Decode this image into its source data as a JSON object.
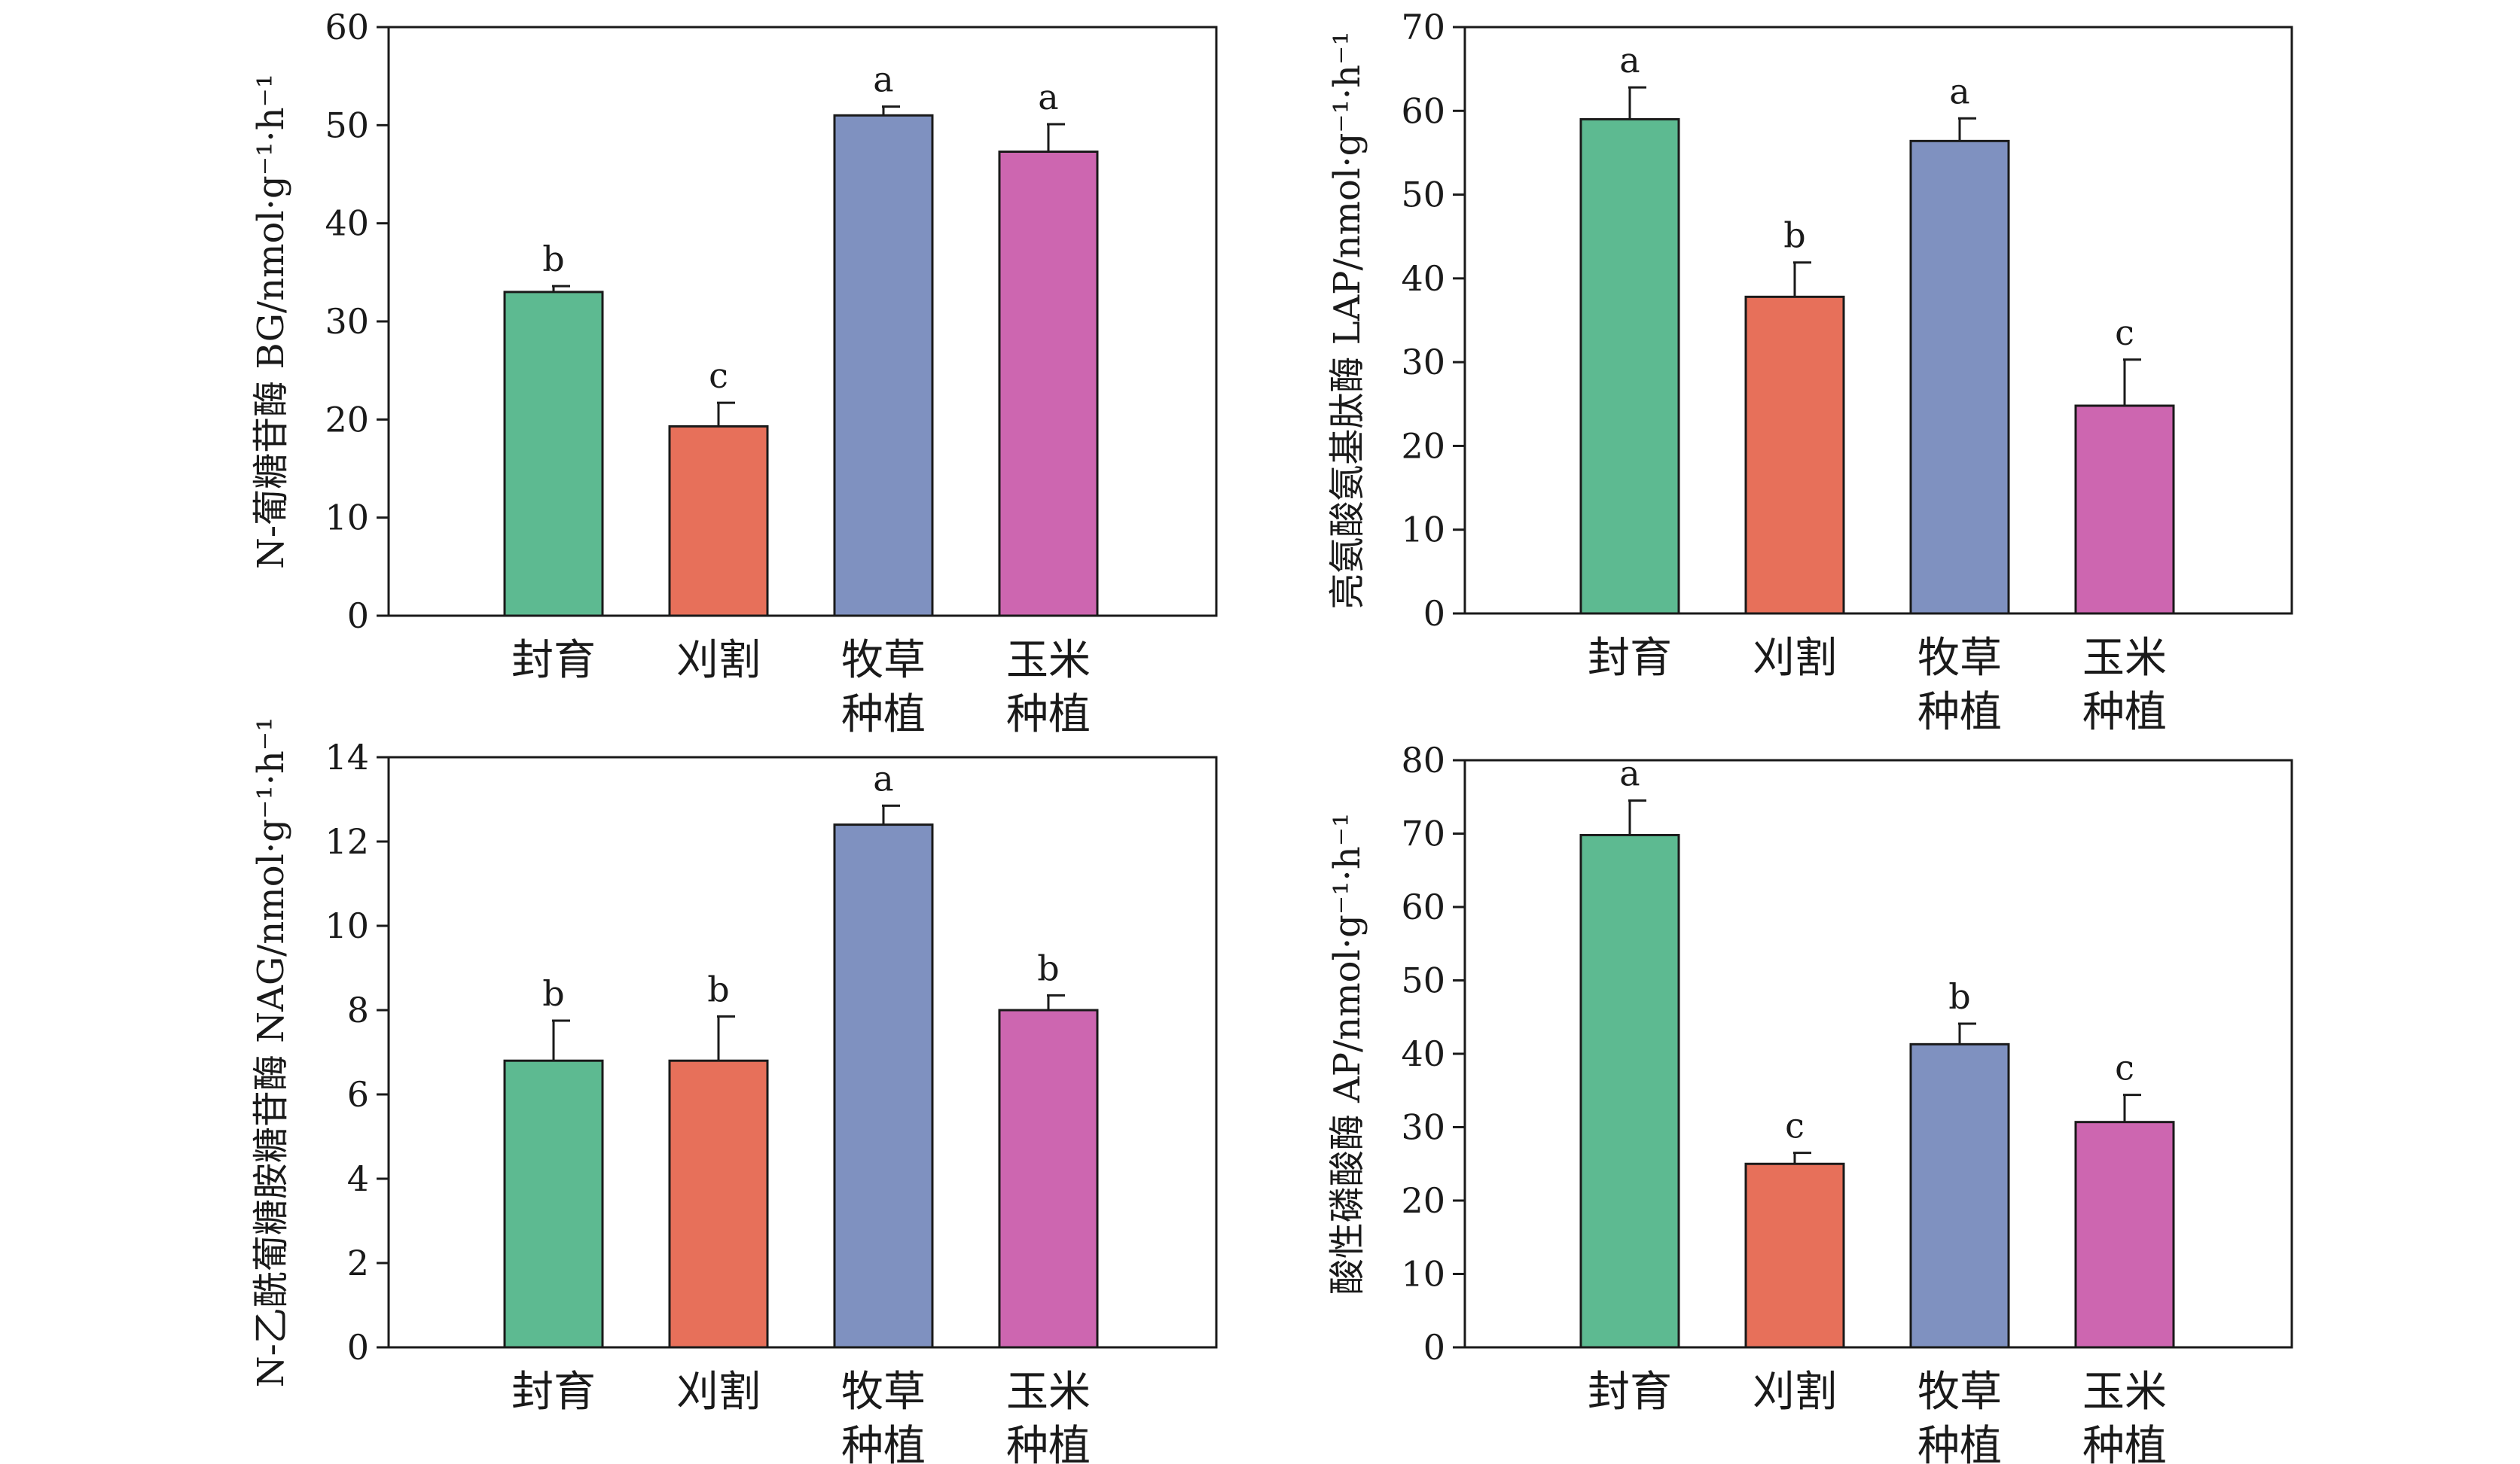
{
  "chart_data": [
    {
      "type": "bar",
      "ylabel": "N-葡糖苷酶 BG/nmol·g⁻¹·h⁻¹",
      "categories": [
        [
          "封育"
        ],
        [
          "刈割"
        ],
        [
          "牧草",
          "种植"
        ],
        [
          "玉米",
          "种植"
        ]
      ],
      "values": [
        33.0,
        19.3,
        51.0,
        47.3
      ],
      "errors": [
        0.6,
        2.4,
        0.9,
        2.8
      ],
      "letters": [
        "b",
        "c",
        "a",
        "a"
      ],
      "ylim": [
        0,
        60
      ],
      "yticks": [
        0,
        10,
        20,
        30,
        40,
        50,
        60
      ],
      "colors": [
        "#5dba91",
        "#e7705a",
        "#7f91c0",
        "#cd66b0"
      ]
    },
    {
      "type": "bar",
      "ylabel": "亮氨酸氨基肽酶 LAP/nmol·g⁻¹·h⁻¹",
      "categories": [
        [
          "封育"
        ],
        [
          "刈割"
        ],
        [
          "牧草",
          "种植"
        ],
        [
          "玉米",
          "种植"
        ]
      ],
      "values": [
        59.0,
        37.8,
        56.4,
        24.8
      ],
      "errors": [
        3.8,
        4.1,
        2.7,
        5.5
      ],
      "letters": [
        "a",
        "b",
        "a",
        "c"
      ],
      "ylim": [
        0,
        70
      ],
      "yticks": [
        0,
        10,
        20,
        30,
        40,
        50,
        60,
        70
      ],
      "colors": [
        "#5dba91",
        "#e7705a",
        "#7f91c0",
        "#cd66b0"
      ]
    },
    {
      "type": "bar",
      "ylabel": "N-乙酰葡糖胺糖苷酶 NAG/nmol·g⁻¹·h⁻¹",
      "categories": [
        [
          "封育"
        ],
        [
          "刈割"
        ],
        [
          "牧草",
          "种植"
        ],
        [
          "玉米",
          "种植"
        ]
      ],
      "values": [
        6.8,
        6.8,
        12.4,
        8.0
      ],
      "errors": [
        0.95,
        1.05,
        0.45,
        0.35
      ],
      "letters": [
        "b",
        "b",
        "a",
        "b"
      ],
      "ylim": [
        0,
        14
      ],
      "yticks": [
        0,
        2,
        4,
        6,
        8,
        10,
        12,
        14
      ],
      "colors": [
        "#5dba91",
        "#e7705a",
        "#7f91c0",
        "#cd66b0"
      ]
    },
    {
      "type": "bar",
      "ylabel": "酸性磷酸酶 AP/nmol·g⁻¹·h⁻¹",
      "categories": [
        [
          "封育"
        ],
        [
          "刈割"
        ],
        [
          "牧草",
          "种植"
        ],
        [
          "玉米",
          "种植"
        ]
      ],
      "values": [
        69.8,
        25.0,
        41.3,
        30.7
      ],
      "errors": [
        4.7,
        1.5,
        2.8,
        3.7
      ],
      "letters": [
        "a",
        "c",
        "b",
        "c"
      ],
      "ylim": [
        0,
        80
      ],
      "yticks": [
        0,
        10,
        20,
        30,
        40,
        50,
        60,
        70,
        80
      ],
      "colors": [
        "#5dba91",
        "#e7705a",
        "#7f91c0",
        "#cd66b0"
      ]
    }
  ]
}
